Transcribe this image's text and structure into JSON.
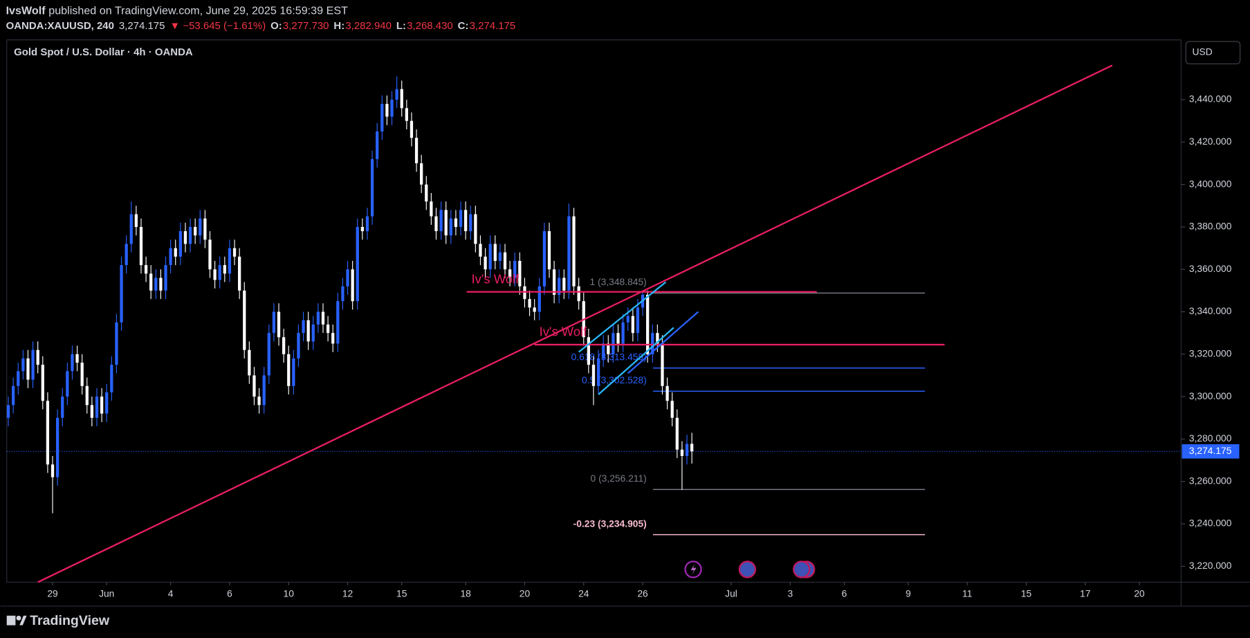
{
  "header": {
    "author": "IvsWolf",
    "published": "published on TradingView.com, June 29, 2025 16:59:39 EST",
    "symbol": "OANDA:XAUUSD, 240",
    "change": "▼ −53.645 (−1.61%)",
    "ohlc": [
      {
        "key": "O:",
        "val": "3,277.730"
      },
      {
        "key": "H:",
        "val": "3,282.940"
      },
      {
        "key": "L:",
        "val": "3,268.430"
      },
      {
        "key": "C:",
        "val": "3,274.175"
      }
    ]
  },
  "legend": "Gold Spot / U.S. Dollar · 4h · OANDA",
  "currency": "USD",
  "brand": "TradingView",
  "chart_data": {
    "type": "candlestick",
    "up_color": "#2962ff",
    "down_color": "#ffffff",
    "xlim": [
      0,
      238
    ],
    "ylim": [
      3212.5,
      3468.2
    ],
    "xticks": [
      {
        "value": 9,
        "label": "29"
      },
      {
        "value": 20,
        "label": "Jun"
      },
      {
        "value": 33,
        "label": "4"
      },
      {
        "value": 45,
        "label": "6"
      },
      {
        "value": 57,
        "label": "10"
      },
      {
        "value": 69,
        "label": "12"
      },
      {
        "value": 80,
        "label": "15"
      },
      {
        "value": 93,
        "label": "18"
      },
      {
        "value": 105,
        "label": "20"
      },
      {
        "value": 117,
        "label": "24"
      },
      {
        "value": 129,
        "label": "26"
      },
      {
        "value": 147,
        "label": "Jul"
      },
      {
        "value": 159,
        "label": "3"
      },
      {
        "value": 170,
        "label": "6"
      },
      {
        "value": 183,
        "label": "9"
      },
      {
        "value": 195,
        "label": "11"
      },
      {
        "value": 207,
        "label": "15"
      },
      {
        "value": 219,
        "label": "17"
      },
      {
        "value": 230,
        "label": "20"
      }
    ],
    "yticks": [
      {
        "value": 3220,
        "label": "3,220.000"
      },
      {
        "value": 3240,
        "label": "3,240.000"
      },
      {
        "value": 3260,
        "label": "3,260.000"
      },
      {
        "value": 3280,
        "label": "3,280.000"
      },
      {
        "value": 3300,
        "label": "3,300.000"
      },
      {
        "value": 3320,
        "label": "3,320.000"
      },
      {
        "value": 3340,
        "label": "3,340.000"
      },
      {
        "value": 3360,
        "label": "3,360.000"
      },
      {
        "value": 3380,
        "label": "3,380.000"
      },
      {
        "value": 3400,
        "label": "3,400.000"
      },
      {
        "value": 3420,
        "label": "3,420.000"
      },
      {
        "value": 3440,
        "label": "3,440.000"
      }
    ],
    "open": [
      3290,
      3296,
      3305,
      3312,
      3318,
      3308,
      3322,
      3315,
      3298,
      3268,
      3262,
      3290,
      3300,
      3312,
      3320,
      3316,
      3305,
      3296,
      3290,
      3300,
      3292,
      3302,
      3315,
      3335,
      3362,
      3372,
      3386,
      3380,
      3362,
      3358,
      3350,
      3356,
      3350,
      3362,
      3370,
      3366,
      3378,
      3372,
      3380,
      3376,
      3384,
      3374,
      3360,
      3355,
      3362,
      3358,
      3370,
      3366,
      3350,
      3322,
      3310,
      3300,
      3296,
      3310,
      3330,
      3340,
      3328,
      3320,
      3305,
      3318,
      3330,
      3336,
      3326,
      3334,
      3340,
      3334,
      3330,
      3325,
      3345,
      3352,
      3360,
      3345,
      3380,
      3378,
      3385,
      3412,
      3425,
      3438,
      3432,
      3440,
      3445,
      3436,
      3430,
      3422,
      3410,
      3400,
      3392,
      3385,
      3378,
      3388,
      3376,
      3384,
      3380,
      3388,
      3378,
      3386,
      3372,
      3366,
      3360,
      3372,
      3364,
      3368,
      3360,
      3356,
      3364,
      3352,
      3346,
      3342,
      3340,
      3352,
      3378,
      3360,
      3348,
      3356,
      3350,
      3385,
      3352,
      3345,
      3328,
      3315,
      3305,
      3318,
      3325,
      3320,
      3330,
      3325,
      3335,
      3338,
      3330,
      3342,
      3348,
      3320,
      3330,
      3325,
      3305,
      3298,
      3290,
      3275,
      3272,
      3277.73
    ],
    "high": [
      3300,
      3309,
      3316,
      3322,
      3322,
      3326,
      3326,
      3319,
      3302,
      3272,
      3294,
      3304,
      3316,
      3324,
      3324,
      3320,
      3309,
      3300,
      3304,
      3304,
      3306,
      3319,
      3339,
      3366,
      3376,
      3392,
      3390,
      3384,
      3366,
      3362,
      3360,
      3360,
      3366,
      3374,
      3374,
      3382,
      3382,
      3384,
      3384,
      3388,
      3388,
      3378,
      3364,
      3366,
      3366,
      3374,
      3374,
      3370,
      3354,
      3326,
      3314,
      3304,
      3314,
      3334,
      3344,
      3344,
      3332,
      3324,
      3322,
      3334,
      3340,
      3340,
      3338,
      3344,
      3344,
      3338,
      3334,
      3349,
      3356,
      3364,
      3364,
      3384,
      3384,
      3389,
      3416,
      3429,
      3442,
      3442,
      3444,
      3451,
      3449,
      3440,
      3434,
      3426,
      3414,
      3404,
      3396,
      3389,
      3392,
      3392,
      3388,
      3388,
      3392,
      3392,
      3390,
      3390,
      3376,
      3370,
      3376,
      3376,
      3372,
      3372,
      3364,
      3368,
      3368,
      3356,
      3350,
      3346,
      3356,
      3382,
      3382,
      3364,
      3360,
      3360,
      3391,
      3389,
      3356,
      3349,
      3332,
      3319,
      3322,
      3329,
      3329,
      3334,
      3334,
      3339,
      3342,
      3342,
      3346,
      3350,
      3350,
      3334,
      3334,
      3329,
      3309,
      3302,
      3294,
      3279,
      3282,
      3282.94
    ],
    "low": [
      3286,
      3292,
      3301,
      3308,
      3304,
      3304,
      3311,
      3294,
      3264,
      3245,
      3258,
      3286,
      3296,
      3308,
      3312,
      3301,
      3292,
      3286,
      3286,
      3288,
      3288,
      3298,
      3311,
      3331,
      3358,
      3368,
      3376,
      3358,
      3354,
      3346,
      3346,
      3346,
      3346,
      3358,
      3362,
      3362,
      3368,
      3368,
      3372,
      3372,
      3370,
      3356,
      3351,
      3351,
      3354,
      3354,
      3362,
      3346,
      3318,
      3306,
      3296,
      3292,
      3292,
      3306,
      3326,
      3324,
      3316,
      3301,
      3301,
      3314,
      3326,
      3322,
      3322,
      3330,
      3330,
      3326,
      3321,
      3321,
      3341,
      3348,
      3341,
      3341,
      3374,
      3374,
      3381,
      3408,
      3421,
      3428,
      3428,
      3436,
      3432,
      3426,
      3418,
      3406,
      3396,
      3388,
      3381,
      3374,
      3374,
      3372,
      3372,
      3376,
      3376,
      3374,
      3374,
      3368,
      3362,
      3356,
      3356,
      3360,
      3360,
      3356,
      3352,
      3352,
      3348,
      3342,
      3338,
      3336,
      3336,
      3348,
      3356,
      3344,
      3344,
      3346,
      3346,
      3348,
      3341,
      3324,
      3311,
      3296,
      3301,
      3314,
      3316,
      3316,
      3321,
      3321,
      3331,
      3326,
      3326,
      3338,
      3316,
      3316,
      3321,
      3301,
      3294,
      3286,
      3271,
      3256,
      3268,
      3268.43
    ],
    "close": [
      3296,
      3305,
      3312,
      3318,
      3308,
      3322,
      3315,
      3298,
      3268,
      3262,
      3290,
      3300,
      3312,
      3320,
      3316,
      3305,
      3296,
      3290,
      3300,
      3292,
      3302,
      3315,
      3335,
      3362,
      3372,
      3386,
      3380,
      3362,
      3358,
      3350,
      3356,
      3350,
      3362,
      3370,
      3366,
      3378,
      3372,
      3380,
      3376,
      3384,
      3374,
      3360,
      3355,
      3362,
      3358,
      3370,
      3366,
      3350,
      3322,
      3310,
      3300,
      3296,
      3310,
      3330,
      3340,
      3328,
      3320,
      3305,
      3318,
      3330,
      3336,
      3326,
      3334,
      3340,
      3334,
      3330,
      3325,
      3345,
      3352,
      3360,
      3345,
      3380,
      3378,
      3385,
      3412,
      3425,
      3438,
      3432,
      3440,
      3445,
      3436,
      3430,
      3422,
      3410,
      3400,
      3392,
      3385,
      3378,
      3388,
      3376,
      3384,
      3380,
      3388,
      3378,
      3386,
      3372,
      3366,
      3360,
      3372,
      3364,
      3368,
      3360,
      3356,
      3364,
      3352,
      3346,
      3342,
      3340,
      3352,
      3378,
      3360,
      3348,
      3356,
      3350,
      3385,
      3352,
      3345,
      3328,
      3315,
      3305,
      3318,
      3325,
      3320,
      3330,
      3325,
      3335,
      3338,
      3330,
      3342,
      3348,
      3320,
      3330,
      3325,
      3305,
      3298,
      3290,
      3275,
      3272,
      3277.73,
      3274.175
    ],
    "last_price": {
      "value": 3274.175,
      "label": "3,274.175"
    },
    "last_price_color": "#2962ff",
    "trend_lines": [
      {
        "color": "#e91e63",
        "x1": 6,
        "y1": 3212.5,
        "x2": 224.5,
        "y2": 3456.2
      },
      {
        "color": "#29b6f6",
        "x1": 116,
        "y1": 3321,
        "x2": 133.7,
        "y2": 3354
      },
      {
        "color": "#29b6f6",
        "x1": 120,
        "y1": 3301,
        "x2": 135.3,
        "y2": 3332.5
      },
      {
        "color": "#2962ff",
        "x1": 126,
        "y1": 3311,
        "x2": 140.3,
        "y2": 3340
      }
    ],
    "level_lines": [
      {
        "color": "#e91e63",
        "value": 3349.4,
        "x1": 93.2,
        "x2": 164.4,
        "label": "Iv's Wolf"
      },
      {
        "color": "#e91e63",
        "value": 3324.5,
        "x1": 107,
        "x2": 190.4,
        "label": "Iv's Wolf"
      }
    ],
    "fib_levels": [
      {
        "value": 3348.845,
        "label": "1 (3,348.845)",
        "color": "#787b86"
      },
      {
        "value": 3313.459,
        "label": "0.618 (3,313.459)",
        "color": "#2962ff"
      },
      {
        "value": 3302.528,
        "label": "0.5 (3,302.528)",
        "color": "#2962ff"
      },
      {
        "value": 3256.211,
        "label": "0 (3,256.211)",
        "color": "#787b86"
      },
      {
        "value": 3234.905,
        "label": "-0.23 (3,234.905)",
        "color": "#f8bbd0"
      }
    ],
    "fib_x": [
      131.1,
      186.4
    ]
  }
}
